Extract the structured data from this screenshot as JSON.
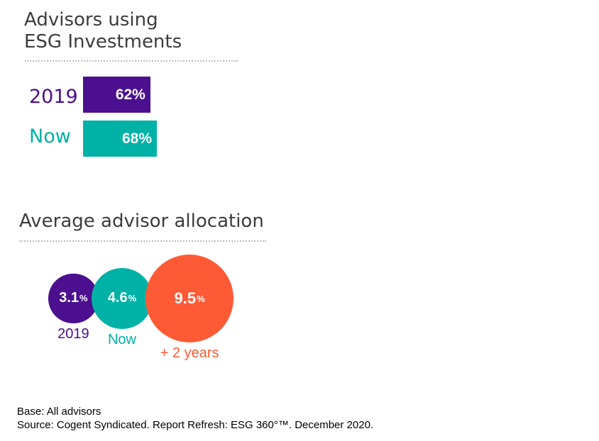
{
  "colors": {
    "2019": "#4b0f8f",
    "now": "#00b2a6",
    "plus2": "#fe5a36",
    "text": "#3c3c3c"
  },
  "chart_data": [
    {
      "type": "bar",
      "title_lines": [
        "Advisors using",
        "ESG Investments"
      ],
      "categories": [
        "2019",
        "Now"
      ],
      "values": [
        62,
        68
      ],
      "value_labels": [
        "62%",
        "68%"
      ],
      "unit": "%"
    },
    {
      "type": "scatter",
      "subtype": "bubble",
      "title": "Average advisor allocation",
      "categories": [
        "2019",
        "Now",
        "+ 2 years"
      ],
      "values": [
        3.1,
        4.6,
        9.5
      ],
      "value_numbers": [
        "3.1",
        "4.6",
        "9.5"
      ],
      "unit": "%"
    }
  ],
  "footnotes": {
    "base": "Base: All advisors",
    "source": "Source: Cogent Syndicated. Report Refresh: ESG 360°™. December 2020."
  }
}
